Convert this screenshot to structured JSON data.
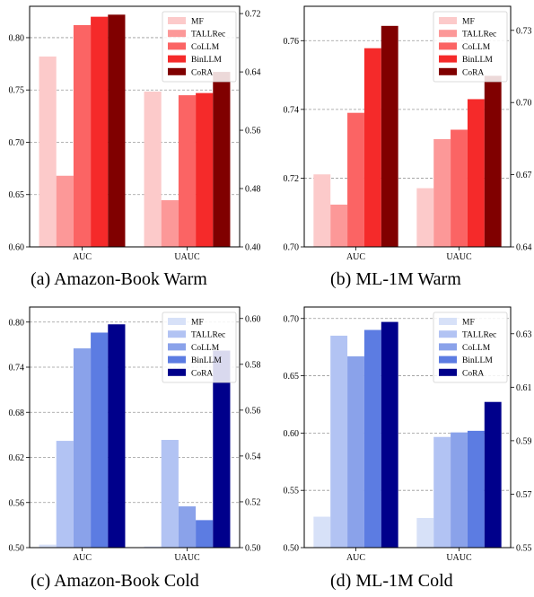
{
  "chart_data": [
    {
      "type": "bar",
      "categories": [
        "AUC",
        "UAUC"
      ],
      "legend": "top-right",
      "grid": "horizontal, dashed",
      "series": [
        {
          "name": "MF",
          "color": "#fccaca",
          "values": [
            0.782,
            0.613
          ]
        },
        {
          "name": "TALLRec",
          "color": "#fc9898",
          "values": [
            0.668,
            0.464
          ]
        },
        {
          "name": "CoLLM",
          "color": "#fb6464",
          "values": [
            0.812,
            0.608
          ]
        },
        {
          "name": "BinLLM",
          "color": "#f52a2a",
          "values": [
            0.82,
            0.611
          ]
        },
        {
          "name": "CoRA",
          "color": "#800000",
          "values": [
            0.822,
            0.64
          ]
        }
      ],
      "series_axis": [
        [
          "left",
          "left",
          "left",
          "left",
          "left"
        ],
        [
          "right",
          "right",
          "right",
          "right",
          "right"
        ]
      ],
      "left_axis": {
        "ylim": [
          0.6,
          0.83
        ],
        "ticks": [
          "0.60",
          "0.65",
          "0.70",
          "0.75",
          "0.80"
        ]
      },
      "right_axis": {
        "ylim": [
          0.4,
          0.73
        ],
        "ticks": [
          "0.40",
          "0.48",
          "0.56",
          "0.64",
          "0.72"
        ]
      },
      "caption": "(a)  Amazon-Book Warm"
    },
    {
      "type": "bar",
      "categories": [
        "AUC",
        "UAUC"
      ],
      "legend": "top-right",
      "grid": "horizontal, dashed",
      "series": [
        {
          "name": "MF",
          "color": "#fccaca",
          "values": [
            0.7211,
            0.6644
          ]
        },
        {
          "name": "TALLRec",
          "color": "#fc9898",
          "values": [
            0.7123,
            0.6848
          ]
        },
        {
          "name": "CoLLM",
          "color": "#fb6464",
          "values": [
            0.739,
            0.6887
          ]
        },
        {
          "name": "BinLLM",
          "color": "#f52a2a",
          "values": [
            0.7578,
            0.7014
          ]
        },
        {
          "name": "CoRA",
          "color": "#800000",
          "values": [
            0.7643,
            0.7111
          ]
        }
      ],
      "series_axis": [
        [
          "left",
          "left",
          "left",
          "left",
          "left"
        ],
        [
          "right",
          "right",
          "right",
          "right",
          "right"
        ]
      ],
      "left_axis": {
        "ylim": [
          0.7,
          0.77
        ],
        "ticks": [
          "0.70",
          "0.72",
          "0.74",
          "0.76"
        ]
      },
      "right_axis": {
        "ylim": [
          0.64,
          0.74
        ],
        "ticks": [
          "0.64",
          "0.67",
          "0.70",
          "0.73"
        ]
      },
      "caption": "(b)  ML-1M Warm"
    },
    {
      "type": "bar",
      "categories": [
        "AUC",
        "UAUC"
      ],
      "legend": "top-right",
      "grid": "horizontal, dashed",
      "series": [
        {
          "name": "MF",
          "color": "#d7e1f8",
          "values": [
            0.504,
            0.5005
          ]
        },
        {
          "name": "TALLRec",
          "color": "#b2c3f3",
          "values": [
            0.642,
            0.547
          ]
        },
        {
          "name": "CoLLM",
          "color": "#8aa2ea",
          "values": [
            0.765,
            0.518
          ]
        },
        {
          "name": "BinLLM",
          "color": "#5c7ce2",
          "values": [
            0.786,
            0.512
          ]
        },
        {
          "name": "CoRA",
          "color": "#00008b",
          "values": [
            0.797,
            0.586
          ]
        }
      ],
      "series_axis": [
        [
          "left",
          "left",
          "left",
          "left",
          "left"
        ],
        [
          "right",
          "right",
          "right",
          "right",
          "right"
        ]
      ],
      "left_axis": {
        "ylim": [
          0.5,
          0.82
        ],
        "ticks": [
          "0.50",
          "0.56",
          "0.62",
          "0.68",
          "0.74",
          "0.80"
        ]
      },
      "right_axis": {
        "ylim": [
          0.5,
          0.605
        ],
        "ticks": [
          "0.50",
          "0.52",
          "0.54",
          "0.56",
          "0.58",
          "0.60"
        ]
      },
      "caption": "(c)  Amazon-Book Cold"
    },
    {
      "type": "bar",
      "categories": [
        "AUC",
        "UAUC"
      ],
      "legend": "top-right",
      "grid": "horizontal, dashed",
      "series": [
        {
          "name": "MF",
          "color": "#d7e1f8",
          "values": [
            0.527,
            0.5611
          ]
        },
        {
          "name": "TALLRec",
          "color": "#b2c3f3",
          "values": [
            0.685,
            0.5914
          ]
        },
        {
          "name": "CoLLM",
          "color": "#8aa2ea",
          "values": [
            0.667,
            0.5931
          ]
        },
        {
          "name": "BinLLM",
          "color": "#5c7ce2",
          "values": [
            0.69,
            0.5937
          ]
        },
        {
          "name": "CoRA",
          "color": "#00008b",
          "values": [
            0.697,
            0.6045
          ]
        }
      ],
      "series_axis": [
        [
          "left",
          "left",
          "left",
          "left",
          "left"
        ],
        [
          "right",
          "right",
          "right",
          "right",
          "right"
        ]
      ],
      "left_axis": {
        "ylim": [
          0.5,
          0.71
        ],
        "ticks": [
          "0.50",
          "0.55",
          "0.60",
          "0.65",
          "0.70"
        ]
      },
      "right_axis": {
        "ylim": [
          0.55,
          0.64
        ],
        "ticks": [
          "0.55",
          "0.57",
          "0.59",
          "0.61",
          "0.63"
        ]
      },
      "caption": "(d)  ML-1M Cold"
    }
  ]
}
